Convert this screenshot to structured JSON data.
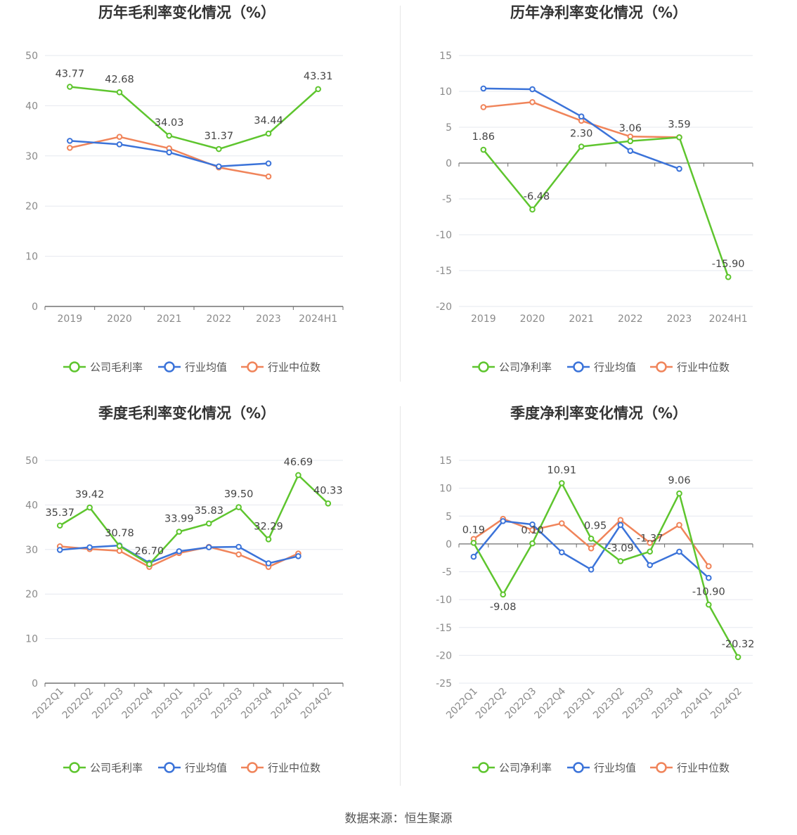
{
  "colors": {
    "company": "#5ec52e",
    "avg": "#3b73d9",
    "median": "#f0845a"
  },
  "legend": {
    "gross": [
      "公司毛利率",
      "行业均值",
      "行业中位数"
    ],
    "net": [
      "公司净利率",
      "行业均值",
      "行业中位数"
    ]
  },
  "source_text": "数据来源：恒生聚源",
  "chart_data": [
    {
      "type": "line",
      "title": "历年毛利率变化情况（%）",
      "categories": [
        "2019",
        "2020",
        "2021",
        "2022",
        "2023",
        "2024H1"
      ],
      "ylim": [
        0,
        50
      ],
      "yticks": [
        0,
        10,
        20,
        30,
        40,
        50
      ],
      "legend_position": "bottom",
      "grid": true,
      "series": [
        {
          "name": "公司毛利率",
          "values": [
            43.77,
            42.68,
            34.03,
            31.37,
            34.44,
            43.31
          ],
          "labels": [
            "43.77",
            "42.68",
            "34.03",
            "31.37",
            "34.44",
            "43.31"
          ]
        },
        {
          "name": "行业均值",
          "values": [
            33.0,
            32.3,
            30.7,
            27.9,
            28.5,
            null
          ]
        },
        {
          "name": "行业中位数",
          "values": [
            31.6,
            33.8,
            31.5,
            27.7,
            25.9,
            null
          ]
        }
      ]
    },
    {
      "type": "line",
      "title": "历年净利率变化情况（%）",
      "categories": [
        "2019",
        "2020",
        "2021",
        "2022",
        "2023",
        "2024H1"
      ],
      "ylim": [
        -20,
        15
      ],
      "yticks": [
        -20,
        -15,
        -10,
        -5,
        0,
        5,
        10,
        15
      ],
      "legend_position": "bottom",
      "grid": true,
      "series": [
        {
          "name": "公司净利率",
          "values": [
            1.86,
            -6.48,
            2.3,
            3.06,
            3.59,
            -15.9
          ],
          "labels": [
            "1.86",
            "-6.48",
            "2.30",
            "3.06",
            "3.59",
            "-15.90"
          ]
        },
        {
          "name": "行业均值",
          "values": [
            10.4,
            10.3,
            6.5,
            1.7,
            -0.8,
            null
          ]
        },
        {
          "name": "行业中位数",
          "values": [
            7.8,
            8.5,
            5.9,
            3.7,
            3.6,
            null
          ]
        }
      ]
    },
    {
      "type": "line",
      "title": "季度毛利率变化情况（%）",
      "categories": [
        "2022Q1",
        "2022Q2",
        "2022Q3",
        "2022Q4",
        "2023Q1",
        "2023Q2",
        "2023Q3",
        "2023Q4",
        "2024Q1",
        "2024Q2"
      ],
      "ylim": [
        0,
        50
      ],
      "yticks": [
        0,
        10,
        20,
        30,
        40,
        50
      ],
      "legend_position": "bottom",
      "grid": true,
      "series": [
        {
          "name": "公司毛利率",
          "values": [
            35.37,
            39.42,
            30.78,
            26.7,
            33.99,
            35.83,
            39.5,
            32.29,
            46.69,
            40.33
          ],
          "labels": [
            "35.37",
            "39.42",
            "30.78",
            "26.70",
            "33.99",
            "35.83",
            "39.50",
            "32.29",
            "46.69",
            "40.33"
          ]
        },
        {
          "name": "行业均值",
          "values": [
            29.9,
            30.5,
            30.9,
            27.0,
            29.6,
            30.5,
            30.6,
            26.9,
            28.5,
            null
          ]
        },
        {
          "name": "行业中位数",
          "values": [
            30.7,
            30.1,
            29.7,
            26.1,
            29.2,
            30.6,
            28.9,
            26.1,
            29.1,
            null
          ]
        }
      ]
    },
    {
      "type": "line",
      "title": "季度净利率变化情况（%）",
      "categories": [
        "2022Q1",
        "2022Q2",
        "2022Q3",
        "2022Q4",
        "2023Q1",
        "2023Q2",
        "2023Q3",
        "2023Q4",
        "2024Q1",
        "2024Q2"
      ],
      "ylim": [
        -25,
        15
      ],
      "yticks": [
        -25,
        -20,
        -15,
        -10,
        -5,
        0,
        5,
        10,
        15
      ],
      "legend_position": "bottom",
      "grid": true,
      "series": [
        {
          "name": "公司净利率",
          "values": [
            0.19,
            -9.08,
            0.1,
            10.91,
            0.95,
            -3.09,
            -1.37,
            9.06,
            -10.9,
            -20.32
          ],
          "labels": [
            "0.19",
            "-9.08",
            "0.10",
            "10.91",
            "0.95",
            "-3.09",
            "-1.37",
            "9.06",
            "-10.90",
            "-20.32"
          ]
        },
        {
          "name": "行业均值",
          "values": [
            -2.3,
            4.1,
            3.5,
            -1.5,
            -4.6,
            3.4,
            -3.8,
            -1.4,
            -6.1,
            null
          ]
        },
        {
          "name": "行业中位数",
          "values": [
            0.9,
            4.5,
            2.5,
            3.7,
            -0.8,
            4.3,
            0.2,
            3.4,
            -4.0,
            null
          ]
        }
      ]
    }
  ]
}
